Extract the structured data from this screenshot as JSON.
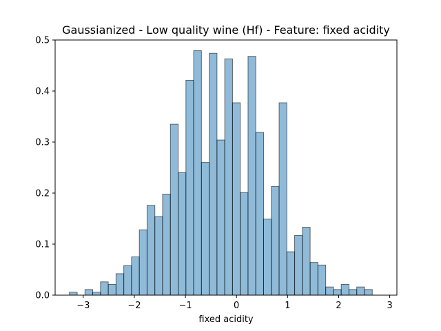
{
  "chart_data": {
    "type": "bar",
    "subtype": "histogram",
    "title": "Gaussianized - Low quality wine (Hf) - Feature: fixed acidity",
    "xlabel": "fixed acidity",
    "ylabel": "",
    "xlim": [
      -3.55,
      3.14
    ],
    "ylim": [
      0,
      0.5
    ],
    "xticks": [
      -3,
      -2,
      -1,
      0,
      1,
      2,
      3
    ],
    "yticks": [
      0.0,
      0.1,
      0.2,
      0.3,
      0.4,
      0.5
    ],
    "xtick_labels": [
      "−3",
      "−2",
      "−1",
      "0",
      "1",
      "2",
      "3"
    ],
    "ytick_labels": [
      "0.0",
      "0.1",
      "0.2",
      "0.3",
      "0.4",
      "0.5"
    ],
    "grid": false,
    "legend": "none",
    "bar_color": "#1f77b4",
    "bar_alpha": 0.5,
    "edge_color": "#000000",
    "bin_edges": [
      -3.27,
      -3.118,
      -2.966,
      -2.814,
      -2.662,
      -2.51,
      -2.358,
      -2.206,
      -2.054,
      -1.902,
      -1.75,
      -1.598,
      -1.446,
      -1.294,
      -1.142,
      -0.99,
      -0.838,
      -0.686,
      -0.534,
      -0.382,
      -0.23,
      -0.078,
      0.074,
      0.226,
      0.378,
      0.53,
      0.682,
      0.834,
      0.986,
      1.138,
      1.29,
      1.442,
      1.594,
      1.746,
      1.898,
      2.05,
      2.202,
      2.354,
      2.506,
      2.658,
      2.81,
      2.962
    ],
    "values": [
      0.006,
      0.0,
      0.011,
      0.006,
      0.026,
      0.021,
      0.042,
      0.058,
      0.075,
      0.128,
      0.176,
      0.154,
      0.198,
      0.335,
      0.24,
      0.421,
      0.479,
      0.26,
      0.474,
      0.304,
      0.463,
      0.377,
      0.201,
      0.468,
      0.319,
      0.149,
      0.213,
      0.377,
      0.085,
      0.117,
      0.133,
      0.064,
      0.059,
      0.016,
      0.011,
      0.021,
      0.011,
      0.016,
      0.011,
      0.0,
      0.0
    ]
  }
}
